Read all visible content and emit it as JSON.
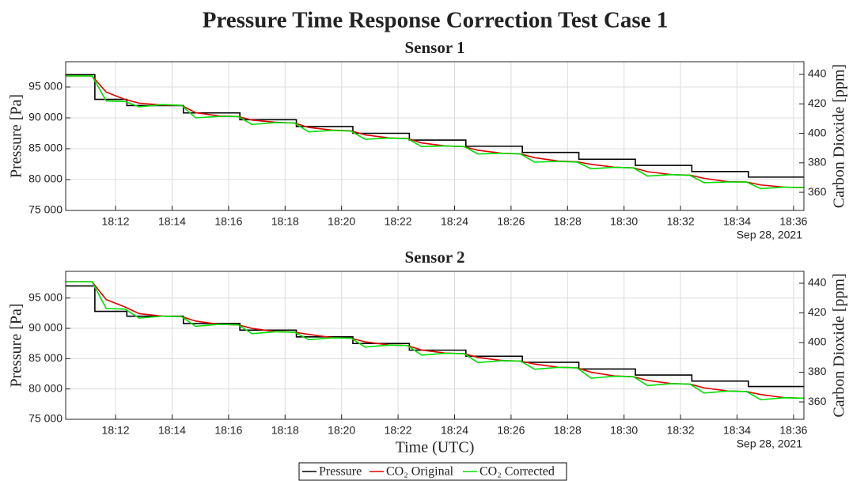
{
  "title": "Pressure Time Response Correction Test Case 1",
  "chart_data": [
    {
      "type": "line",
      "title": "Sensor 1",
      "ylabel": "Pressure [Pa]",
      "y2label": "Carbon Dioxide [ppm]",
      "annotation": "Sep 28, 2021",
      "xlim": [
        "18:10:14",
        "18:36:22"
      ],
      "xticks": [
        "18:12",
        "18:14",
        "18:16",
        "18:18",
        "18:20",
        "18:22",
        "18:24",
        "18:26",
        "18:28",
        "18:30",
        "18:32",
        "18:34",
        "18:36"
      ],
      "ylim": [
        75000,
        99100
      ],
      "yticks": [
        {
          "value": 75000,
          "label": "75 000"
        },
        {
          "value": 80000,
          "label": "80 000"
        },
        {
          "value": 85000,
          "label": "85 000"
        },
        {
          "value": 90000,
          "label": "90 000"
        },
        {
          "value": 95000,
          "label": "95 000"
        }
      ],
      "y2lim": [
        347.7,
        448.6
      ],
      "y2ticks": [
        360,
        380,
        400,
        420,
        440
      ],
      "grid": true,
      "series": [
        {
          "color": "#000000",
          "x": [
            "18:10:14",
            "18:11:16",
            "18:11:16",
            "18:12:24",
            "18:12:24",
            "18:14:24",
            "18:14:24",
            "18:16:24",
            "18:16:24",
            "18:18:24",
            "18:18:24",
            "18:20:24",
            "18:20:24",
            "18:22:24",
            "18:22:24",
            "18:24:24",
            "18:24:24",
            "18:26:24",
            "18:26:24",
            "18:28:24",
            "18:28:24",
            "18:30:24",
            "18:30:24",
            "18:32:24",
            "18:32:24",
            "18:34:24",
            "18:34:24",
            "18:36:22"
          ],
          "values": [
            97000,
            97000,
            93000,
            93000,
            92000,
            92000,
            90800,
            90800,
            89700,
            89700,
            88600,
            88600,
            87500,
            87500,
            86400,
            86400,
            85400,
            85400,
            84400,
            84400,
            83300,
            83300,
            82300,
            82300,
            81300,
            81300,
            80400,
            80400
          ]
        },
        {
          "color": "#e00000",
          "axis": "y2",
          "x": [
            "18:10:14",
            "18:11:10",
            "18:11:40",
            "18:12:20",
            "18:12:50",
            "18:13:40",
            "18:14:20",
            "18:14:50",
            "18:15:40",
            "18:16:20",
            "18:16:50",
            "18:17:40",
            "18:18:20",
            "18:18:50",
            "18:19:40",
            "18:20:20",
            "18:20:50",
            "18:21:40",
            "18:22:20",
            "18:22:50",
            "18:23:40",
            "18:24:20",
            "18:24:50",
            "18:25:40",
            "18:26:20",
            "18:26:50",
            "18:27:40",
            "18:28:20",
            "18:28:50",
            "18:29:40",
            "18:30:20",
            "18:30:50",
            "18:31:40",
            "18:32:20",
            "18:32:50",
            "18:33:40",
            "18:34:20",
            "18:34:50",
            "18:35:40",
            "18:36:22"
          ],
          "values": [
            439,
            439,
            428,
            423,
            420.5,
            419.2,
            419,
            414,
            411.8,
            411.4,
            409,
            407.5,
            407,
            404,
            402.2,
            401.7,
            399,
            396.9,
            396.5,
            393.5,
            391.5,
            391,
            388.5,
            386.5,
            386.1,
            383.5,
            381.2,
            380.7,
            379,
            377,
            376.6,
            374,
            372,
            371.6,
            369.5,
            367.2,
            367,
            365,
            363.5,
            363.2
          ]
        },
        {
          "color": "#00e000",
          "axis": "y2",
          "x": [
            "18:10:14",
            "18:11:10",
            "18:11:40",
            "18:12:20",
            "18:12:50",
            "18:13:40",
            "18:14:20",
            "18:14:50",
            "18:15:40",
            "18:16:20",
            "18:16:50",
            "18:17:40",
            "18:18:20",
            "18:18:50",
            "18:19:40",
            "18:20:20",
            "18:20:50",
            "18:21:40",
            "18:22:20",
            "18:22:50",
            "18:23:40",
            "18:24:20",
            "18:24:50",
            "18:25:40",
            "18:26:20",
            "18:26:50",
            "18:27:40",
            "18:28:20",
            "18:28:50",
            "18:29:40",
            "18:30:20",
            "18:30:50",
            "18:31:40",
            "18:32:20",
            "18:32:50",
            "18:33:40",
            "18:34:20",
            "18:34:50",
            "18:35:40",
            "18:36:22"
          ],
          "values": [
            439,
            439,
            422,
            421.6,
            418,
            419.5,
            419,
            410.5,
            411.5,
            411.4,
            406,
            407.3,
            407,
            401,
            402,
            401.5,
            396,
            396.8,
            396.4,
            391,
            391.5,
            391,
            386,
            386.5,
            386,
            380.5,
            381,
            380.5,
            376,
            377,
            376.5,
            371,
            372,
            371.5,
            366.5,
            367,
            367,
            362.5,
            363.5,
            363.2
          ]
        }
      ]
    },
    {
      "type": "line",
      "title": "Sensor 2",
      "xlabel": "Time (UTC)",
      "ylabel": "Pressure [Pa]",
      "y2label": "Carbon Dioxide [ppm]",
      "annotation": "Sep 28, 2021",
      "xlim": [
        "18:10:14",
        "18:36:22"
      ],
      "xticks": [
        "18:12",
        "18:14",
        "18:16",
        "18:18",
        "18:20",
        "18:22",
        "18:24",
        "18:26",
        "18:28",
        "18:30",
        "18:32",
        "18:34",
        "18:36"
      ],
      "ylim": [
        75000,
        99400
      ],
      "yticks": [
        {
          "value": 75000,
          "label": "75 000"
        },
        {
          "value": 80000,
          "label": "80 000"
        },
        {
          "value": 85000,
          "label": "85 000"
        },
        {
          "value": 90000,
          "label": "90 000"
        },
        {
          "value": 95000,
          "label": "95 000"
        }
      ],
      "y2lim": [
        348.3,
        448
      ],
      "y2ticks": [
        360,
        380,
        400,
        420,
        440
      ],
      "grid": true,
      "series": [
        {
          "name": "Pressure",
          "color": "#000000",
          "x": [
            "18:10:14",
            "18:11:16",
            "18:11:16",
            "18:12:24",
            "18:12:24",
            "18:14:24",
            "18:14:24",
            "18:16:24",
            "18:16:24",
            "18:18:24",
            "18:18:24",
            "18:20:24",
            "18:20:24",
            "18:22:24",
            "18:22:24",
            "18:24:24",
            "18:24:24",
            "18:26:24",
            "18:26:24",
            "18:28:24",
            "18:28:24",
            "18:30:24",
            "18:30:24",
            "18:32:24",
            "18:32:24",
            "18:34:24",
            "18:34:24",
            "18:36:22"
          ],
          "values": [
            97000,
            97000,
            92800,
            92800,
            92000,
            92000,
            90800,
            90800,
            89700,
            89700,
            88600,
            88600,
            87500,
            87500,
            86400,
            86400,
            85400,
            85400,
            84400,
            84400,
            83300,
            83300,
            82300,
            82300,
            81300,
            81300,
            80400,
            80400
          ]
        },
        {
          "name": "CO₂ Original",
          "color": "#e00000",
          "axis": "y2",
          "x": [
            "18:10:14",
            "18:11:10",
            "18:11:40",
            "18:12:20",
            "18:12:50",
            "18:13:40",
            "18:14:20",
            "18:14:50",
            "18:15:40",
            "18:16:20",
            "18:16:50",
            "18:17:40",
            "18:18:20",
            "18:18:50",
            "18:19:40",
            "18:20:20",
            "18:20:50",
            "18:21:40",
            "18:22:20",
            "18:22:50",
            "18:23:40",
            "18:24:20",
            "18:24:50",
            "18:25:40",
            "18:26:20",
            "18:26:50",
            "18:27:40",
            "18:28:20",
            "18:28:50",
            "18:29:40",
            "18:30:20",
            "18:30:50",
            "18:31:40",
            "18:32:20",
            "18:32:50",
            "18:33:40",
            "18:34:20",
            "18:34:50",
            "18:35:40",
            "18:36:22"
          ],
          "values": [
            441,
            441,
            429,
            424,
            419.5,
            417.8,
            417.5,
            414.5,
            412.3,
            412,
            409.5,
            407.4,
            407,
            405.5,
            403.3,
            403,
            400.5,
            398.4,
            398,
            395,
            392.9,
            392.5,
            390,
            387.9,
            387.5,
            385.5,
            383.4,
            383,
            380,
            377.5,
            377,
            374.5,
            372.4,
            372,
            369.5,
            367.4,
            367,
            365,
            362.9,
            362.5
          ]
        },
        {
          "name": "CO₂ Corrected",
          "color": "#00e000",
          "axis": "y2",
          "x": [
            "18:10:14",
            "18:11:10",
            "18:11:40",
            "18:12:20",
            "18:12:50",
            "18:13:40",
            "18:14:20",
            "18:14:50",
            "18:15:40",
            "18:16:20",
            "18:16:50",
            "18:17:40",
            "18:18:20",
            "18:18:50",
            "18:19:40",
            "18:20:20",
            "18:20:50",
            "18:21:40",
            "18:22:20",
            "18:22:50",
            "18:23:40",
            "18:24:20",
            "18:24:50",
            "18:25:40",
            "18:26:20",
            "18:26:50",
            "18:27:40",
            "18:28:20",
            "18:28:50",
            "18:29:40",
            "18:30:20",
            "18:30:50",
            "18:31:40",
            "18:32:20",
            "18:32:50",
            "18:33:40",
            "18:34:20",
            "18:34:50",
            "18:35:40",
            "18:36:22"
          ],
          "values": [
            441,
            441,
            423,
            422.5,
            416.5,
            417.8,
            417.5,
            411,
            412.3,
            412,
            406,
            407.3,
            407,
            402,
            403.2,
            403,
            397,
            398.3,
            398,
            391.5,
            392.8,
            392.5,
            386.5,
            387.8,
            387.5,
            382,
            383.3,
            383,
            376,
            377.3,
            377,
            371,
            372.3,
            372,
            366,
            367.3,
            367,
            361.5,
            362.8,
            362.5
          ]
        }
      ]
    }
  ]
}
